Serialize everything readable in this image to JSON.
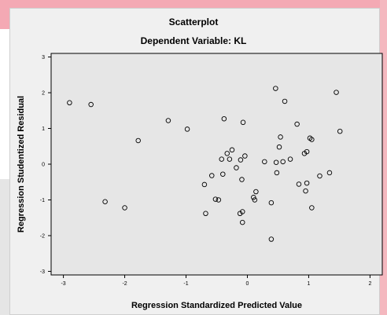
{
  "chart_data": {
    "type": "scatter",
    "title": "Scatterplot",
    "subtitle": "Dependent Variable: KL",
    "xlabel": "Regression Standardized Predicted Value",
    "ylabel": "Regression Studentized Residual",
    "xlim": [
      -3.2,
      2.2
    ],
    "ylim": [
      -3.1,
      3.1
    ],
    "xticks": [
      "-3",
      "-2",
      "-1",
      "0",
      "1",
      "2"
    ],
    "yticks": [
      "3",
      "2",
      "1",
      "0",
      "-1",
      "-2",
      "-3"
    ],
    "grid": false,
    "marker": "open-circle",
    "colors": {
      "plot_background": "#e6e6e6",
      "marker_stroke": "#000000",
      "frame": "#000000"
    },
    "points": [
      {
        "x": -2.9,
        "y": 1.72
      },
      {
        "x": -2.55,
        "y": 1.67
      },
      {
        "x": -2.32,
        "y": -1.05
      },
      {
        "x": -2.0,
        "y": -1.22
      },
      {
        "x": -1.78,
        "y": 0.66
      },
      {
        "x": -1.29,
        "y": 1.22
      },
      {
        "x": -0.98,
        "y": 0.98
      },
      {
        "x": -0.7,
        "y": -0.57
      },
      {
        "x": -0.68,
        "y": -1.38
      },
      {
        "x": -0.58,
        "y": -0.32
      },
      {
        "x": -0.52,
        "y": -0.98
      },
      {
        "x": -0.47,
        "y": -1.0
      },
      {
        "x": -0.42,
        "y": 0.14
      },
      {
        "x": -0.38,
        "y": 1.27
      },
      {
        "x": -0.4,
        "y": -0.28
      },
      {
        "x": -0.33,
        "y": 0.3
      },
      {
        "x": -0.29,
        "y": 0.14
      },
      {
        "x": -0.25,
        "y": 0.4
      },
      {
        "x": -0.18,
        "y": -0.1
      },
      {
        "x": -0.11,
        "y": 0.12
      },
      {
        "x": -0.09,
        "y": -0.43
      },
      {
        "x": -0.07,
        "y": 1.17
      },
      {
        "x": -0.04,
        "y": 0.23
      },
      {
        "x": -0.12,
        "y": -1.38
      },
      {
        "x": -0.08,
        "y": -1.33
      },
      {
        "x": -0.08,
        "y": -1.63
      },
      {
        "x": 0.1,
        "y": -0.93
      },
      {
        "x": 0.12,
        "y": -1.0
      },
      {
        "x": 0.14,
        "y": -0.77
      },
      {
        "x": 0.28,
        "y": 0.07
      },
      {
        "x": 0.39,
        "y": -1.08
      },
      {
        "x": 0.39,
        "y": -2.1
      },
      {
        "x": 0.46,
        "y": 2.12
      },
      {
        "x": 0.47,
        "y": 0.05
      },
      {
        "x": 0.48,
        "y": -0.24
      },
      {
        "x": 0.52,
        "y": 0.48
      },
      {
        "x": 0.54,
        "y": 0.76
      },
      {
        "x": 0.58,
        "y": 0.07
      },
      {
        "x": 0.61,
        "y": 1.76
      },
      {
        "x": 0.7,
        "y": 0.14
      },
      {
        "x": 0.81,
        "y": 1.12
      },
      {
        "x": 0.84,
        "y": -0.56
      },
      {
        "x": 0.93,
        "y": 0.3
      },
      {
        "x": 0.95,
        "y": -0.75
      },
      {
        "x": 0.97,
        "y": 0.35
      },
      {
        "x": 0.97,
        "y": -0.53
      },
      {
        "x": 1.02,
        "y": 0.73
      },
      {
        "x": 1.05,
        "y": 0.69
      },
      {
        "x": 1.05,
        "y": -1.22
      },
      {
        "x": 1.18,
        "y": -0.33
      },
      {
        "x": 1.34,
        "y": -0.24
      },
      {
        "x": 1.45,
        "y": 2.01
      },
      {
        "x": 1.51,
        "y": 0.92
      }
    ]
  }
}
